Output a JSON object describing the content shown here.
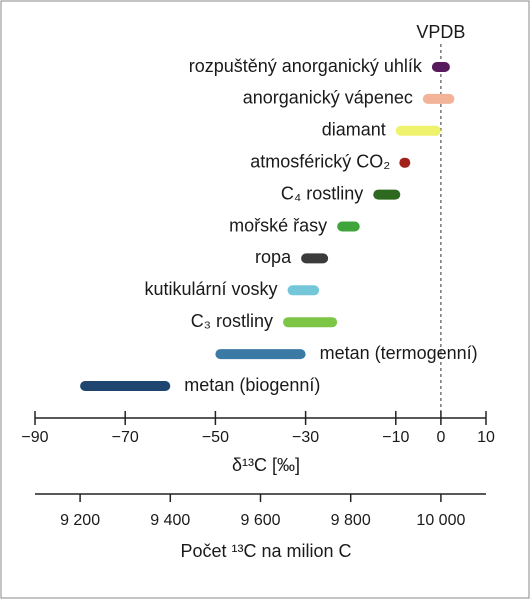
{
  "chart_data": {
    "type": "range-bar",
    "categories": [
      "rozpuštěný anorganický uhlík",
      "anorganický vápenec",
      "diamant",
      "atmosférický CO₂",
      "C₄ rostliny",
      "mořské řasy",
      "ropa",
      "kutikulární vosky",
      "C₃ rostliny",
      "metan (termogenní)",
      "metan (biogenní)"
    ],
    "low": [
      -2,
      -4,
      -10,
      -9,
      -15,
      -23,
      -31,
      -34,
      -35,
      -50,
      -80
    ],
    "high": [
      2,
      3,
      0,
      -7,
      -9,
      -18,
      -25,
      -27,
      -23,
      -30,
      -60
    ],
    "colors": [
      "#571a5c",
      "#f3b398",
      "#eff26c",
      "#a3211b",
      "#2d6a1f",
      "#3fa43a",
      "#3b3b3b",
      "#74c7d8",
      "#7dc545",
      "#3c7aa6",
      "#1e4670"
    ],
    "xlabel": "δ¹³C [‰]",
    "xlim": [
      -90,
      10
    ],
    "xticks": [
      {
        "value": -90,
        "label": "−90"
      },
      {
        "value": -70,
        "label": "−70"
      },
      {
        "value": -50,
        "label": "−50"
      },
      {
        "value": -30,
        "label": "−30"
      },
      {
        "value": -10,
        "label": "−10"
      },
      0,
      10
    ],
    "x2label": "Počet ¹³C na milion C",
    "x2lim": [
      9100,
      10100
    ],
    "x2ticks": [
      {
        "value": 9200,
        "label": "9 200"
      },
      {
        "value": 9400,
        "label": "9 400"
      },
      {
        "value": 9600,
        "label": "9 600"
      },
      {
        "value": 9800,
        "label": "9 800"
      },
      {
        "value": 10000,
        "label": "10 000"
      }
    ],
    "reference_line": {
      "value": 0,
      "label": "VPDB"
    }
  }
}
